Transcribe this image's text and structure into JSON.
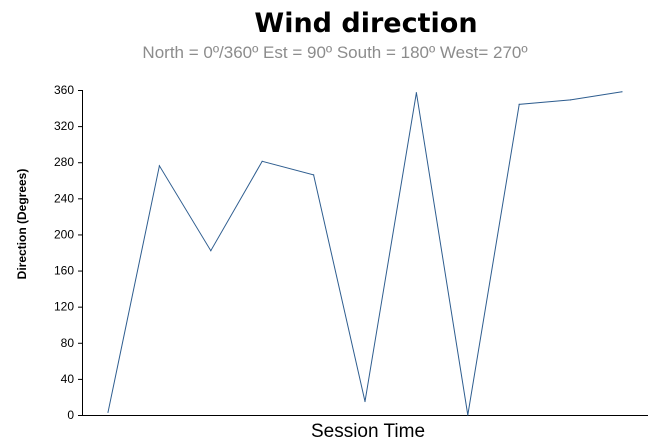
{
  "chart_data": {
    "type": "line",
    "title": "Wind direction",
    "subtitle": "North = 0º/360º   Est = 90º   South = 180º   West= 270º",
    "xlabel": "Session Time",
    "ylabel": "Direction (Degrees)",
    "ylim": [
      0,
      360
    ],
    "yticks": [
      0,
      40,
      80,
      120,
      160,
      200,
      240,
      280,
      320,
      360
    ],
    "grid": false,
    "series": [
      {
        "color": "#2e5d8f",
        "values": [
          3,
          276,
          182,
          281,
          266,
          15,
          357,
          0,
          344,
          349,
          358
        ]
      }
    ]
  }
}
